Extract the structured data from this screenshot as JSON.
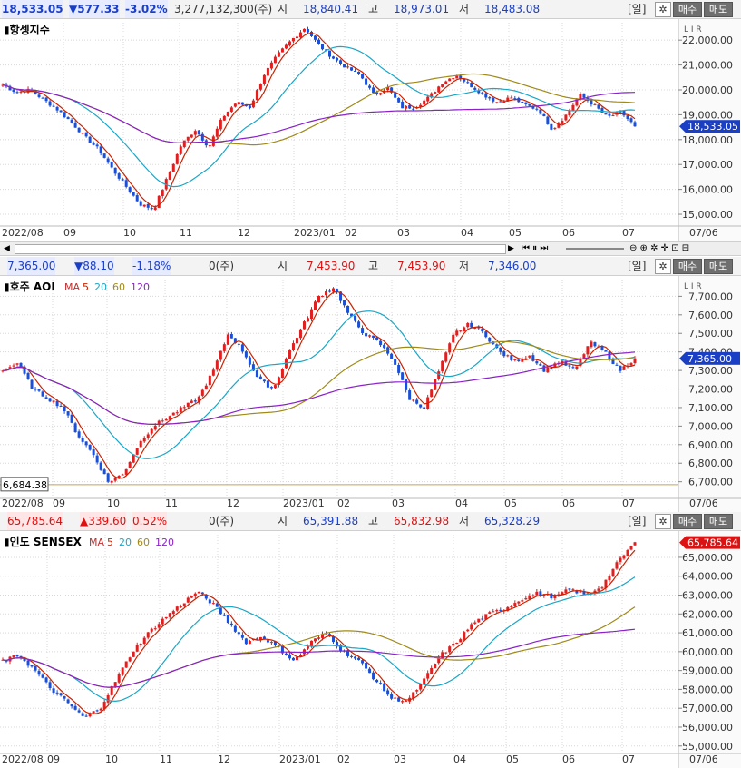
{
  "panels": [
    {
      "id": "hangseng",
      "info": {
        "price": "18,533.05",
        "change": "▼577.33",
        "pct": "-3.02%",
        "volume": "3,277,132,300(주)",
        "open_lbl": "시",
        "open": "18,840.41",
        "high_lbl": "고",
        "high": "18,973.01",
        "low_lbl": "저",
        "low": "18,483.08",
        "period": "[일]",
        "buy": "매수",
        "sell": "매도"
      },
      "title": "▮항셍지수",
      "ma_legend": [],
      "corner": "L I R",
      "current_tag": "18,533.05",
      "tag_color": "#1b3fc4",
      "xlabels": [
        "2022/08",
        "09",
        "10",
        "11",
        "12",
        "2023/01",
        "02",
        "03",
        "04",
        "05",
        "06",
        "07",
        "07/06"
      ],
      "yticks": [
        "22,000.00",
        "21,000.00",
        "20,000.00",
        "19,000.00",
        "18,000.00",
        "17,000.00",
        "16,000.00",
        "15,000.00"
      ]
    },
    {
      "id": "asx",
      "info": {
        "price": "7,365.00",
        "change": "▼88.10",
        "pct": "-1.18%",
        "volume": "0(주)",
        "open_lbl": "시",
        "open": "7,453.90",
        "high_lbl": "고",
        "high": "7,453.90",
        "low_lbl": "저",
        "low": "7,346.00",
        "period": "[일]",
        "buy": "매수",
        "sell": "매도"
      },
      "title": "▮호주 AOI",
      "ma_legend": [
        "MA",
        "5",
        "20",
        "60",
        "120"
      ],
      "corner": "L I R",
      "current_tag": "7,365.00",
      "tag_color": "#1b3fc4",
      "left_tag": "6,684.38",
      "xlabels": [
        "2022/08",
        "09",
        "10",
        "11",
        "12",
        "2023/01",
        "02",
        "03",
        "04",
        "05",
        "06",
        "07",
        "07/06"
      ],
      "yticks": [
        "7,700.00",
        "7,600.00",
        "7,500.00",
        "7,400.00",
        "7,300.00",
        "7,200.00",
        "7,100.00",
        "7,000.00",
        "6,900.00",
        "6,800.00",
        "6,700.00"
      ]
    },
    {
      "id": "sensex",
      "info": {
        "price": "65,785.64",
        "change": "▲339.60",
        "pct": "0.52%",
        "volume": "0(주)",
        "open_lbl": "시",
        "open": "65,391.88",
        "high_lbl": "고",
        "high": "65,832.98",
        "low_lbl": "저",
        "low": "65,328.29",
        "period": "[일]",
        "buy": "매수",
        "sell": "매도"
      },
      "title": "▮인도 SENSEX",
      "ma_legend": [
        "MA",
        "5",
        "20",
        "60",
        "120"
      ],
      "corner": "L I R",
      "current_tag": "65,785.64",
      "tag_color": "#d11",
      "xlabels": [
        "2022/08",
        "09",
        "10",
        "11",
        "12",
        "2023/01",
        "02",
        "03",
        "04",
        "05",
        "06",
        "07",
        "07/06"
      ],
      "yticks": [
        "65,000.00",
        "64,000.00",
        "63,000.00",
        "62,000.00",
        "61,000.00",
        "60,000.00",
        "59,000.00",
        "58,000.00",
        "57,000.00",
        "56,000.00",
        "55,000.00"
      ]
    }
  ],
  "colors": {
    "up": "#e02020",
    "down": "#1a4fd6",
    "ma5": "#cc2200",
    "ma20": "#19a7c7",
    "ma60": "#a08a18",
    "ma120": "#8a22c8",
    "grid": "#d8d8d8"
  },
  "chart_data": [
    {
      "type": "candlestick",
      "name": "항셍지수",
      "ylim": [
        14600,
        22700
      ],
      "x_months": [
        "2022/08",
        "09",
        "10",
        "11",
        "12",
        "2023/01",
        "02",
        "03",
        "04",
        "05",
        "06",
        "07"
      ],
      "close_path": [
        20200,
        19900,
        20000,
        19600,
        19200,
        18700,
        18100,
        17600,
        16800,
        16100,
        15400,
        15200,
        16500,
        17800,
        18400,
        17700,
        18900,
        19500,
        19300,
        20600,
        21400,
        22000,
        22500,
        21800,
        21300,
        20900,
        20600,
        19800,
        20100,
        19300,
        19300,
        19700,
        20300,
        20600,
        20200,
        19800,
        19500,
        19700,
        19400,
        19200,
        18400,
        19000,
        19800,
        19400,
        18900,
        19100,
        18533
      ],
      "ma120_anchor": [
        20800,
        20400,
        20000,
        19500,
        19100,
        18900,
        19000,
        19100,
        19200,
        19400,
        19700,
        19900,
        20100,
        20200,
        20100
      ]
    },
    {
      "type": "candlestick",
      "name": "호주 AOI",
      "ylim": [
        6620,
        7790
      ],
      "x_months": [
        "2022/08",
        "09",
        "10",
        "11",
        "12",
        "2023/01",
        "02",
        "03",
        "04",
        "05",
        "06",
        "07"
      ],
      "close_path": [
        7300,
        7340,
        7200,
        7150,
        7100,
        6950,
        6850,
        6700,
        6740,
        6900,
        7000,
        7050,
        7100,
        7150,
        7300,
        7500,
        7400,
        7250,
        7200,
        7400,
        7550,
        7700,
        7750,
        7600,
        7500,
        7450,
        7350,
        7150,
        7100,
        7300,
        7500,
        7550,
        7500,
        7400,
        7350,
        7380,
        7300,
        7350,
        7300,
        7450,
        7400,
        7300,
        7365
      ]
    },
    {
      "type": "candlestick",
      "name": "인도 SENSEX",
      "ylim": [
        54700,
        66200
      ],
      "x_months": [
        "2022/08",
        "09",
        "10",
        "11",
        "12",
        "2023/01",
        "02",
        "03",
        "04",
        "05",
        "06",
        "07"
      ],
      "close_path": [
        59500,
        59800,
        59000,
        58000,
        57300,
        56500,
        57000,
        58500,
        60000,
        61000,
        61800,
        62500,
        63200,
        62500,
        61500,
        60500,
        60800,
        60200,
        59500,
        60500,
        61000,
        60000,
        59500,
        58500,
        57500,
        57400,
        58500,
        59800,
        60500,
        61500,
        62000,
        62300,
        62800,
        63100,
        62900,
        63300,
        63000,
        63500,
        64800,
        65800
      ]
    }
  ]
}
